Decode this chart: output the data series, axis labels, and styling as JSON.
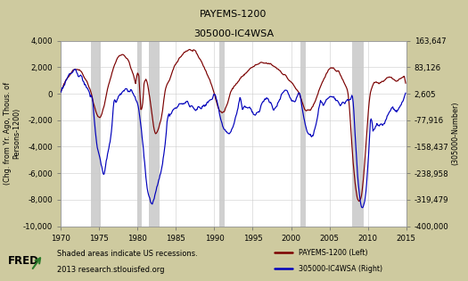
{
  "title_line1": "PAYEMS-1200",
  "title_line2": "305000-IC4WSA",
  "bg_color": "#ceca9f",
  "plot_bg_color": "#ffffff",
  "line1_color": "#7b0000",
  "line2_color": "#0000bb",
  "recession_color": "#d0d0d0",
  "xlabel_years": [
    1970,
    1975,
    1980,
    1985,
    1990,
    1995,
    2000,
    2005,
    2010,
    2015
  ],
  "yleft_ticks": [
    4000,
    2000,
    0,
    -2000,
    -4000,
    -6000,
    -8000,
    -10000
  ],
  "yright_ticks": [
    163647,
    83126,
    2605,
    -77916,
    -158437,
    -238958,
    -319479,
    -400000
  ],
  "yleft_labels": [
    "4,000",
    "2,000",
    "0",
    "-2,000",
    "-4,000",
    "-6,000",
    "-8,000",
    "-10,000"
  ],
  "yright_labels": [
    "163,647",
    "83,126",
    "2,605",
    "-77,916",
    "-158,437",
    "-238,958",
    "-319,479",
    "-400,000"
  ],
  "ylabel_left": "(Chg. from Yr. Ago, Thous. of\nPersons-1200)",
  "ylabel_right": "(305000-Number)",
  "ylim_left": [
    -10000,
    4000
  ],
  "ylim_right": [
    -400000,
    163647
  ],
  "xlim": [
    1970,
    2015
  ],
  "recession_bands": [
    [
      1973.9,
      1975.2
    ],
    [
      1980.0,
      1980.5
    ],
    [
      1981.5,
      1982.9
    ],
    [
      1990.6,
      1991.3
    ],
    [
      2001.2,
      2001.9
    ],
    [
      2007.9,
      2009.5
    ]
  ],
  "footer_text1": "Shaded areas indicate US recessions.",
  "footer_text2": "2013 research.stlouisfed.org",
  "legend_label1": "PAYEMS-1200 (Left)",
  "legend_label2": "305000-IC4WSA (Right)"
}
